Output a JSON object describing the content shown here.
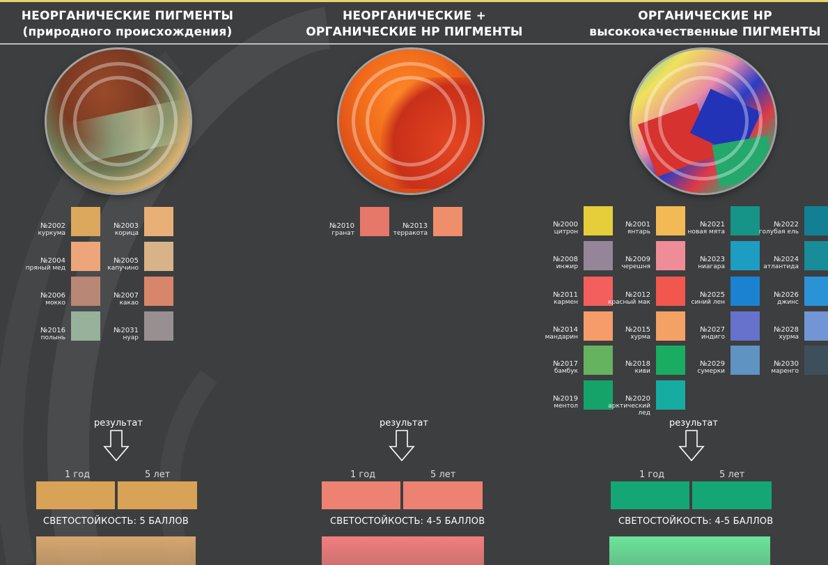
{
  "headers": [
    {
      "line1": "НЕОРГАНИЧЕСКИЕ ПИГМЕНТЫ",
      "line2": "(природного происхождения)"
    },
    {
      "line1": "НЕОРГАНИЧЕСКИЕ +",
      "line2": "ОРГАНИЧЕСКИЕ  НР ПИГМЕНТЫ"
    },
    {
      "line1": "ОРГАНИЧЕСКИЕ НР",
      "line2": "высококачественные ПИГМЕНТЫ"
    }
  ],
  "col1": {
    "swatches": [
      {
        "num": "№2002",
        "name": "куркума",
        "color": "#dba85e"
      },
      {
        "num": "№2003",
        "name": "корица",
        "color": "#e8b077"
      },
      {
        "num": "№2004",
        "name": "пряный мед",
        "color": "#eda67a"
      },
      {
        "num": "№2005",
        "name": "капучино",
        "color": "#d8b387"
      },
      {
        "num": "№2006",
        "name": "мокко",
        "color": "#b88775"
      },
      {
        "num": "№2007",
        "name": "какао",
        "color": "#d8866a"
      },
      {
        "num": "№2016",
        "name": "полынь",
        "color": "#97b19b"
      },
      {
        "num": "№2031",
        "name": "нуар",
        "color": "#989090"
      }
    ],
    "result": "результат",
    "year1": "1 год",
    "year5": "5 лет",
    "bar_color": "#d9a357",
    "fastness": "СВЕТОСТОЙКОСТЬ: 5 БАЛЛОВ",
    "sample_color": "#d6a66f"
  },
  "col2": {
    "swatches": [
      {
        "num": "№2010",
        "name": "гранат",
        "color": "#e6786a"
      },
      {
        "num": "№2013",
        "name": "терракота",
        "color": "#ef8e6b"
      }
    ],
    "result": "результат",
    "year1": "1 год",
    "year5": "5 лет",
    "bar_color": "#ed8272",
    "fastness": "СВЕТОСТОЙКОСТЬ: 4-5 БАЛЛОВ",
    "sample_color": "#f27e7e"
  },
  "col3": {
    "swatches": [
      {
        "num": "№2000",
        "name": "цитрон",
        "color": "#e6ce3a"
      },
      {
        "num": "№2001",
        "name": "янтарь",
        "color": "#f2b955"
      },
      {
        "num": "№2021",
        "name": "новая мята",
        "color": "#159487"
      },
      {
        "num": "№2022",
        "name": "голубая ель",
        "color": "#137f95"
      },
      {
        "num": "№2008",
        "name": "инжир",
        "color": "#948698"
      },
      {
        "num": "№2009",
        "name": "черешня",
        "color": "#ee8c98"
      },
      {
        "num": "№2023",
        "name": "ниагара",
        "color": "#1e9dc2"
      },
      {
        "num": "№2024",
        "name": "атлантида",
        "color": "#198c99"
      },
      {
        "num": "№2011",
        "name": "кармен",
        "color": "#f35f5d"
      },
      {
        "num": "№2012",
        "name": "красный мак",
        "color": "#f2574e"
      },
      {
        "num": "№2025",
        "name": "синий лен",
        "color": "#1b82d2"
      },
      {
        "num": "№2026",
        "name": "джинс",
        "color": "#2993d6"
      },
      {
        "num": "№2014",
        "name": "мандарин",
        "color": "#f69c6a"
      },
      {
        "num": "№2015",
        "name": "хурма",
        "color": "#f3a165"
      },
      {
        "num": "№2027",
        "name": "индиго",
        "color": "#6672cc"
      },
      {
        "num": "№2028",
        "name": "хурма",
        "color": "#7295d6"
      },
      {
        "num": "№2017",
        "name": "бамбук",
        "color": "#65b25f"
      },
      {
        "num": "№2018",
        "name": "киви",
        "color": "#1aad62"
      },
      {
        "num": "№2029",
        "name": "сумерки",
        "color": "#5e93c2"
      },
      {
        "num": "№2030",
        "name": "маренго",
        "color": "#3e4f5c"
      },
      {
        "num": "№2019",
        "name": "ментол",
        "color": "#16a36a"
      },
      {
        "num": "№2020",
        "name": "арктический лед",
        "color": "#16aca1"
      }
    ],
    "result": "результат",
    "year1": "1 год",
    "year5": "5 лет",
    "bar_color": "#15a676",
    "fastness": "СВЕТОСТОЙКОСТЬ: 4-5 БАЛЛОВ",
    "sample_color": "#6ce39a"
  }
}
